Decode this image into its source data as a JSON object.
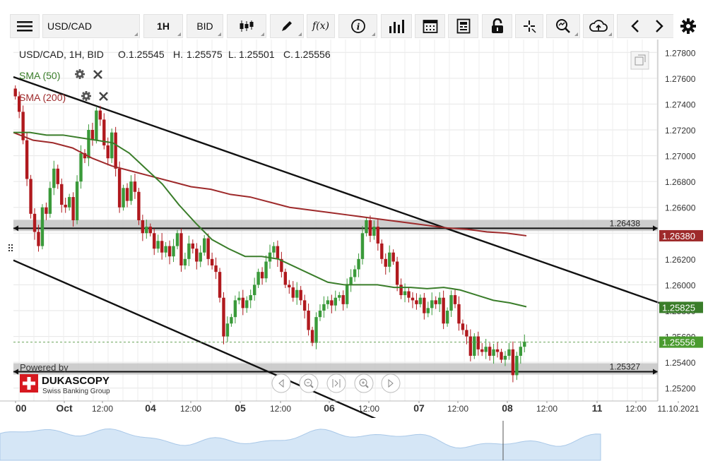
{
  "toolbar": {
    "menu_icon": "hamburger-menu-icon",
    "instrument": "USD/CAD",
    "timeframe": "1H",
    "side": "BID",
    "buttons": [
      "candlestick-type-icon",
      "draw-pencil-icon",
      "function-fx-icon",
      "info-icon",
      "volume-bars-icon",
      "calendar-icon",
      "news-icon",
      "lock-icon",
      "crosshair-icon",
      "search-zoom-icon",
      "cloud-upload-icon",
      "arrow-left-icon",
      "arrow-right-icon",
      "settings-gear-icon"
    ],
    "fx_label": "f(x)"
  },
  "chart_data": {
    "type": "candlestick",
    "title": "USD/CAD, 1H, BID",
    "ohlc_header": {
      "o_label": "O.",
      "o": "1.25545",
      "h_label": "H.",
      "h": "1.25575",
      "l_label": "L.",
      "l": "1.25501",
      "c_label": "C.",
      "c": "1.25556"
    },
    "indicators": [
      {
        "name": "SMA (50)",
        "color": "#3a7d2a",
        "last": "1.25825"
      },
      {
        "name": "SMA (200)",
        "color": "#9e2a2b",
        "last": "1.26380"
      }
    ],
    "last_price": "1.25556",
    "last_price_color": "#4a9b2f",
    "ylim": [
      1.251,
      1.279
    ],
    "y_ticks": [
      "1.27800",
      "1.27600",
      "1.27400",
      "1.27200",
      "1.27000",
      "1.26800",
      "1.26600",
      "1.26400",
      "1.26200",
      "1.26000",
      "1.25800",
      "1.25600",
      "1.25400",
      "1.25200"
    ],
    "x_ticks": [
      "00",
      "Oct",
      "12:00",
      "04",
      "12:00",
      "05",
      "12:00",
      "06",
      "12:00",
      "07",
      "12:00",
      "08",
      "12:00",
      "11",
      "12:00",
      "11.10.2021"
    ],
    "horizontal_levels": [
      {
        "label": "1.26438",
        "value": 1.26438
      },
      {
        "label": "1.25327",
        "value": 1.25327
      }
    ],
    "candles_close": [
      1.2746,
      1.2734,
      1.2712,
      1.2682,
      1.2655,
      1.2641,
      1.263,
      1.266,
      1.2655,
      1.2675,
      1.269,
      1.2678,
      1.2662,
      1.266,
      1.2668,
      1.265,
      1.268,
      1.2702,
      1.2698,
      1.272,
      1.2712,
      1.2735,
      1.2728,
      1.2708,
      1.2698,
      1.2718,
      1.269,
      1.266,
      1.2675,
      1.2665,
      1.268,
      1.2672,
      1.265,
      1.264,
      1.2645,
      1.264,
      1.2628,
      1.2634,
      1.2625,
      1.263,
      1.2622,
      1.263,
      1.264,
      1.2615,
      1.262,
      1.2632,
      1.2628,
      1.2618,
      1.2625,
      1.2636,
      1.262,
      1.2615,
      1.261,
      1.259,
      1.256,
      1.257,
      1.2575,
      1.2588,
      1.259,
      1.2582,
      1.2588,
      1.2592,
      1.26,
      1.261,
      1.2605,
      1.2618,
      1.2625,
      1.263,
      1.262,
      1.261,
      1.26,
      1.2598,
      1.259,
      1.2596,
      1.2588,
      1.258,
      1.2565,
      1.2555,
      1.2575,
      1.258,
      1.2585,
      1.2588,
      1.2584,
      1.259,
      1.2592,
      1.2585,
      1.26,
      1.2606,
      1.2612,
      1.262,
      1.264,
      1.265,
      1.2638,
      1.2645,
      1.2632,
      1.262,
      1.2614,
      1.2625,
      1.2618,
      1.26,
      1.2592,
      1.2595,
      1.259,
      1.2588,
      1.2585,
      1.259,
      1.2578,
      1.2582,
      1.2588,
      1.2585,
      1.259,
      1.257,
      1.258,
      1.2592,
      1.2585,
      1.257,
      1.2565,
      1.256,
      1.2545,
      1.256,
      1.255,
      1.2548,
      1.2552,
      1.2545,
      1.255,
      1.2548,
      1.2542,
      1.2545,
      1.255,
      1.253,
      1.2545,
      1.2552,
      1.2556
    ],
    "sma50": [
      1.2718,
      1.2718,
      1.2716,
      1.2716,
      1.2714,
      1.2712,
      1.271,
      1.2702,
      1.269,
      1.2678,
      1.2662,
      1.2648,
      1.2635,
      1.2628,
      1.2622,
      1.2622,
      1.262,
      1.2614,
      1.2608,
      1.2602,
      1.26,
      1.26,
      1.26,
      1.2598,
      1.2598,
      1.2597,
      1.2598,
      1.2596,
      1.2592,
      1.2588,
      1.2586,
      1.2583
    ],
    "sma200": [
      1.2718,
      1.2712,
      1.271,
      1.2706,
      1.2698,
      1.2692,
      1.2688,
      1.2684,
      1.268,
      1.2676,
      1.2674,
      1.267,
      1.2668,
      1.2664,
      1.266,
      1.2658,
      1.2656,
      1.2654,
      1.2652,
      1.265,
      1.2648,
      1.2646,
      1.2644,
      1.2643,
      1.2641,
      1.264,
      1.2638
    ],
    "channel": [
      {
        "from": [
          0,
          1.2761
        ],
        "to": [
          935,
          1.2582
        ]
      },
      {
        "from": [
          0,
          1.2619
        ],
        "to": [
          560,
          1.2485
        ]
      }
    ],
    "navigator_label": "11.10.2021"
  },
  "watermark": {
    "powered_by": "Powered by",
    "brand": "DUKASCOPY",
    "sub": "Swiss Banking Group"
  },
  "nav_controls": [
    "scroll-left-icon",
    "zoom-out-icon",
    "reset-zoom-icon",
    "zoom-in-icon",
    "scroll-right-icon"
  ]
}
